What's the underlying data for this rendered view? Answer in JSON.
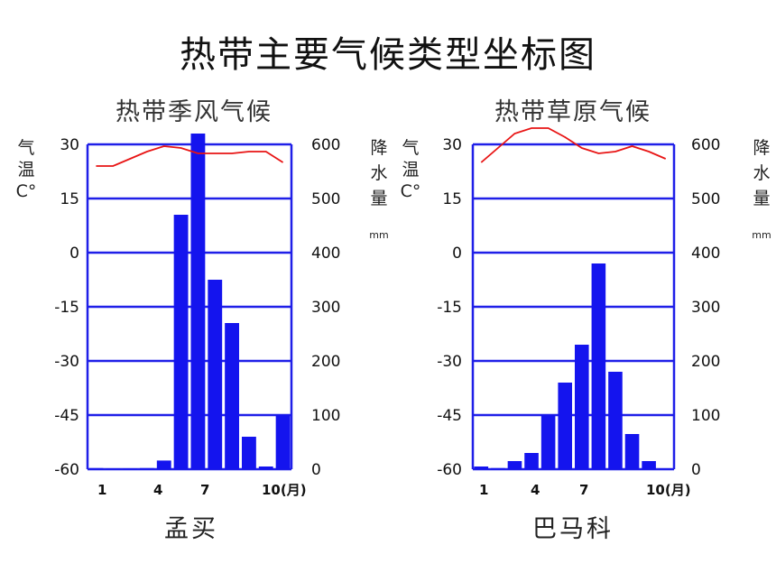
{
  "page": {
    "title": "热带主要气候类型坐标图"
  },
  "chart_data": [
    {
      "type": "bar+line",
      "title": "热带季风气候",
      "location": "孟买",
      "temp_axis_label": [
        "气",
        "温",
        "C°"
      ],
      "precip_axis_label": [
        "降",
        "水",
        "量"
      ],
      "precip_unit": "mm",
      "temp_ticks": [
        "30",
        "15",
        "0",
        "-15",
        "-30",
        "-45",
        "-60"
      ],
      "precip_ticks": [
        "600",
        "500",
        "400",
        "300",
        "200",
        "100",
        "0"
      ],
      "temp_range": [
        -60,
        30
      ],
      "precip_range": [
        0,
        600
      ],
      "x_ticks": [
        "1",
        "4",
        "7",
        "10(月)"
      ],
      "months": [
        1,
        2,
        3,
        4,
        5,
        6,
        7,
        8,
        9,
        10,
        11,
        12
      ],
      "precipitation": [
        2,
        1,
        1,
        2,
        16,
        470,
        620,
        350,
        270,
        60,
        5,
        100
      ],
      "temperature": [
        24,
        24,
        26,
        28,
        29.5,
        29,
        27.5,
        27.5,
        27.5,
        28,
        28,
        25
      ]
    },
    {
      "type": "bar+line",
      "title": "热带草原气候",
      "location": "巴马科",
      "temp_axis_label": [
        "气",
        "温",
        "C°"
      ],
      "precip_axis_label": [
        "降",
        "水",
        "量"
      ],
      "precip_unit": "mm",
      "temp_ticks": [
        "30",
        "15",
        "0",
        "-15",
        "-30",
        "-45",
        "-60"
      ],
      "precip_ticks": [
        "600",
        "500",
        "400",
        "300",
        "200",
        "100",
        "0"
      ],
      "temp_range": [
        -60,
        30
      ],
      "precip_range": [
        0,
        600
      ],
      "x_ticks": [
        "1",
        "4",
        "7",
        "10(月)"
      ],
      "months": [
        1,
        2,
        3,
        4,
        5,
        6,
        7,
        8,
        9,
        10,
        11,
        12
      ],
      "precipitation": [
        5,
        2,
        15,
        30,
        100,
        160,
        230,
        380,
        180,
        65,
        15,
        1
      ],
      "temperature": [
        25,
        29,
        33,
        34.5,
        34.5,
        32,
        29,
        27.5,
        28,
        29.5,
        28,
        26
      ]
    }
  ]
}
